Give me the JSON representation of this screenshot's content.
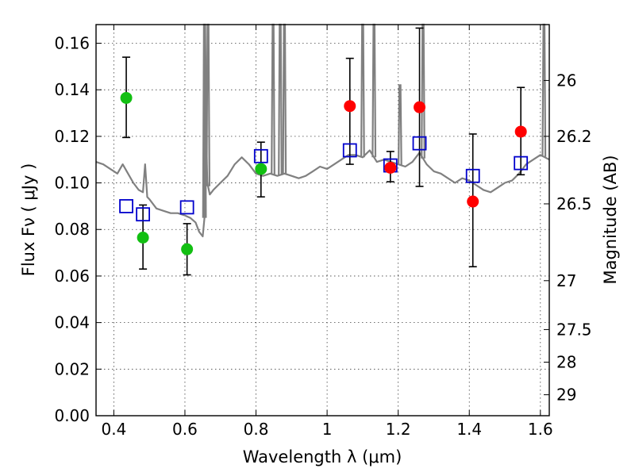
{
  "chart_data": {
    "type": "scatter",
    "xlabel": "Wavelength  λ (μm)",
    "ylabel": "Flux  Fν  ( μJy )",
    "ylabel_right": "Magnitude (AB)",
    "xlim": [
      0.35,
      1.625
    ],
    "ylim": [
      0.0,
      0.168
    ],
    "grid": true,
    "x_ticks": [
      0.4,
      0.6,
      0.8,
      1.0,
      1.2,
      1.4,
      1.6
    ],
    "x_tick_labels": [
      "0.4",
      "0.6",
      "0.8",
      "1",
      "1.2",
      "1.4",
      "1.6"
    ],
    "y_ticks": [
      0.0,
      0.02,
      0.04,
      0.06,
      0.08,
      0.1,
      0.12,
      0.14,
      0.16
    ],
    "y_tick_labels": [
      "0.00",
      "0.02",
      "0.04",
      "0.06",
      "0.08",
      "0.10",
      "0.12",
      "0.14",
      "0.16"
    ],
    "right_ticks": [
      {
        "label": "26",
        "flux": 0.144
      },
      {
        "label": "26.2",
        "flux": 0.12
      },
      {
        "label": "26.5",
        "flux": 0.091
      },
      {
        "label": "27",
        "flux": 0.058
      },
      {
        "label": "27.5",
        "flux": 0.037
      },
      {
        "label": "28",
        "flux": 0.023
      },
      {
        "label": "29",
        "flux": 0.009
      }
    ],
    "series": [
      {
        "name": "observed-green",
        "color": "#12bf12",
        "marker": "circle",
        "x": [
          0.435,
          0.482,
          0.606,
          0.814
        ],
        "y": [
          0.1365,
          0.0765,
          0.0715,
          0.106
        ],
        "yerr_low": [
          0.1195,
          0.063,
          0.0605,
          0.094
        ],
        "yerr_high": [
          0.154,
          0.0905,
          0.0825,
          0.1175
        ]
      },
      {
        "name": "observed-red",
        "color": "#ff0000",
        "marker": "circle",
        "x": [
          1.064,
          1.178,
          1.26,
          1.41,
          1.545
        ],
        "y": [
          0.133,
          0.1065,
          0.1325,
          0.092,
          0.122
        ],
        "yerr_low": [
          0.108,
          0.1005,
          0.0985,
          0.064,
          0.1035
        ],
        "yerr_high": [
          0.1535,
          0.1135,
          0.1665,
          0.121,
          0.141
        ]
      },
      {
        "name": "model-photometry",
        "color": "#0000cc",
        "marker": "square",
        "x": [
          0.435,
          0.482,
          0.606,
          0.814,
          1.064,
          1.178,
          1.26,
          1.41,
          1.545
        ],
        "y": [
          0.09,
          0.0865,
          0.0895,
          0.1115,
          0.114,
          0.1075,
          0.117,
          0.103,
          0.1085
        ]
      },
      {
        "name": "model-spectrum",
        "color": "#808080",
        "type": "line",
        "x": [
          0.35,
          0.37,
          0.39,
          0.41,
          0.425,
          0.44,
          0.455,
          0.47,
          0.482,
          0.488,
          0.494,
          0.5,
          0.52,
          0.54,
          0.56,
          0.58,
          0.6,
          0.615,
          0.63,
          0.64,
          0.65,
          0.655,
          0.657,
          0.66,
          0.663,
          0.67,
          0.68,
          0.7,
          0.72,
          0.74,
          0.76,
          0.78,
          0.8,
          0.82,
          0.84,
          0.86,
          0.88,
          0.9,
          0.92,
          0.94,
          0.96,
          0.98,
          1.0,
          1.02,
          1.04,
          1.06,
          1.08,
          1.1,
          1.12,
          1.14,
          1.16,
          1.18,
          1.2,
          1.22,
          1.24,
          1.26,
          1.28,
          1.3,
          1.32,
          1.34,
          1.36,
          1.38,
          1.4,
          1.42,
          1.44,
          1.46,
          1.48,
          1.5,
          1.52,
          1.54,
          1.56,
          1.58,
          1.6,
          1.625
        ],
        "y": [
          0.109,
          0.108,
          0.106,
          0.104,
          0.108,
          0.104,
          0.1,
          0.097,
          0.096,
          0.108,
          0.094,
          0.093,
          0.089,
          0.088,
          0.087,
          0.087,
          0.086,
          0.085,
          0.083,
          0.079,
          0.077,
          0.085,
          0.168,
          0.12,
          0.1,
          0.095,
          0.097,
          0.1,
          0.103,
          0.108,
          0.111,
          0.108,
          0.104,
          0.103,
          0.104,
          0.103,
          0.104,
          0.103,
          0.102,
          0.103,
          0.105,
          0.107,
          0.106,
          0.108,
          0.11,
          0.112,
          0.112,
          0.111,
          0.114,
          0.109,
          0.11,
          0.109,
          0.108,
          0.107,
          0.109,
          0.113,
          0.108,
          0.105,
          0.104,
          0.102,
          0.1,
          0.102,
          0.101,
          0.099,
          0.097,
          0.096,
          0.098,
          0.1,
          0.101,
          0.104,
          0.108,
          0.11,
          0.112,
          0.11
        ]
      }
    ],
    "spectrum_spikes": [
      {
        "x": 0.655,
        "top": 0.168
      },
      {
        "x": 0.665,
        "top": 0.168
      },
      {
        "x": 0.848,
        "top": 0.168
      },
      {
        "x": 0.868,
        "top": 0.168
      },
      {
        "x": 0.88,
        "top": 0.168
      },
      {
        "x": 1.1,
        "top": 0.168
      },
      {
        "x": 1.132,
        "top": 0.168
      },
      {
        "x": 1.205,
        "top": 0.142
      },
      {
        "x": 1.27,
        "top": 0.168
      },
      {
        "x": 1.61,
        "top": 0.168
      }
    ]
  }
}
